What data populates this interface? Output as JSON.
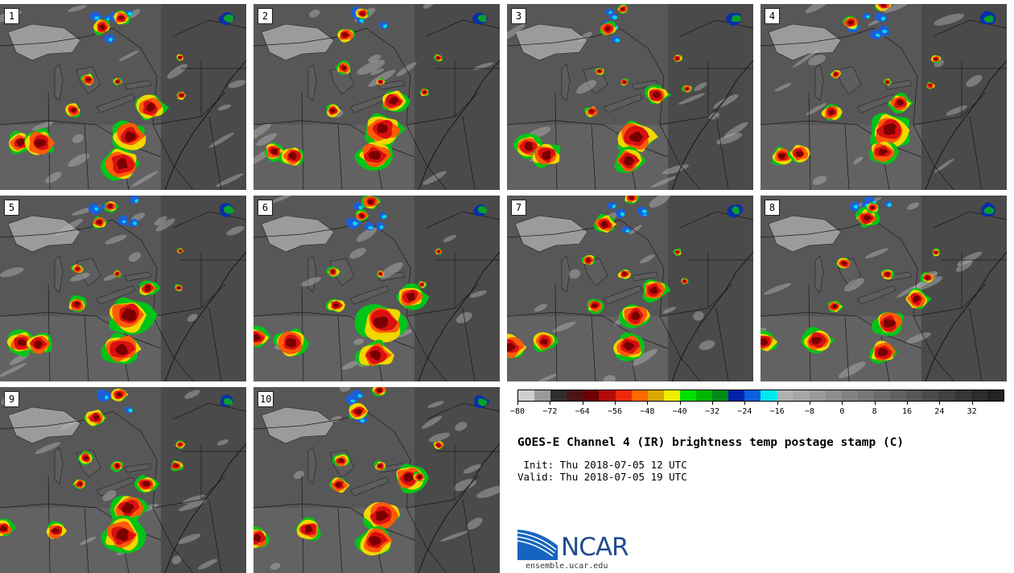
{
  "title": "GOES-E Channel 4 (IR) brightness temp postage stamp (C)",
  "init_text": " Init: Thu 2018-07-05 12 UTC",
  "valid_text": "Valid: Thu 2018-07-05 19 UTC",
  "logo": {
    "name": "NCAR",
    "url": "ensemble.ucar.edu"
  },
  "colorbar": {
    "min": -80,
    "max": 40,
    "step": 4,
    "tick_labels": [
      "−80",
      "−72",
      "−64",
      "−56",
      "−48",
      "−40",
      "−32",
      "−24",
      "−16",
      "−8",
      "0",
      "8",
      "16",
      "24",
      "32"
    ],
    "tick_values": [
      -80,
      -72,
      -64,
      -56,
      -48,
      -40,
      -32,
      -24,
      -16,
      -8,
      0,
      8,
      16,
      24,
      32
    ],
    "colors": [
      "#cfcfcf",
      "#9a9a9a",
      "#2e2e2e",
      "#4a1414",
      "#6e0000",
      "#b30a0a",
      "#ee2a0a",
      "#ff6a00",
      "#d9a800",
      "#f0f000",
      "#00e000",
      "#00b800",
      "#008a18",
      "#0022aa",
      "#0a60e0",
      "#00e8f0",
      "#b0b0b0",
      "#a6a6a6",
      "#9a9a9a",
      "#8e8e8e",
      "#828282",
      "#777777",
      "#6c6c6c",
      "#616161",
      "#565656",
      "#4b4b4b",
      "#404040",
      "#363636",
      "#2c2c2c",
      "#222222"
    ]
  },
  "panels": [
    {
      "label": "1"
    },
    {
      "label": "2"
    },
    {
      "label": "3"
    },
    {
      "label": "4"
    },
    {
      "label": "5"
    },
    {
      "label": "6"
    },
    {
      "label": "7"
    },
    {
      "label": "8"
    },
    {
      "label": "9"
    },
    {
      "label": "10"
    }
  ]
}
